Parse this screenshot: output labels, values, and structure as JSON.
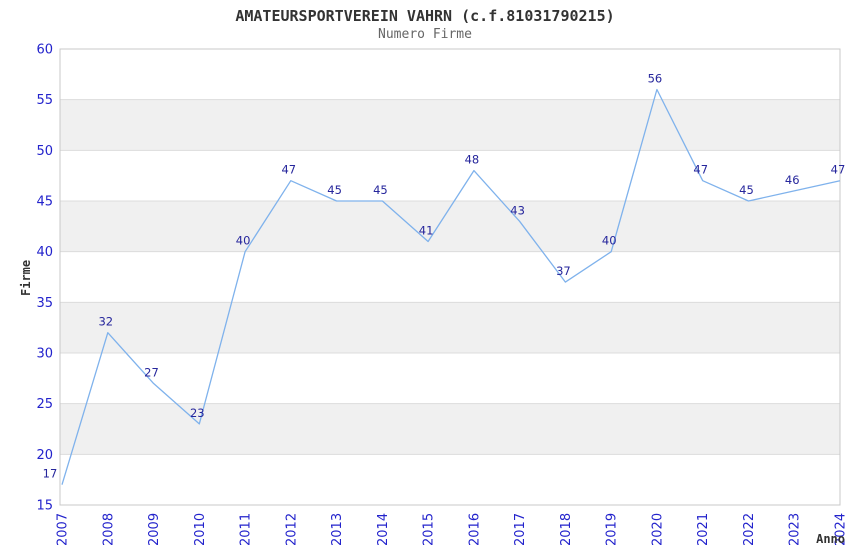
{
  "header": {
    "title": "AMATEURSPORTVEREIN VAHRN (c.f.81031790215)",
    "subtitle": "Numero Firme"
  },
  "chart_data": {
    "type": "line",
    "title": "AMATEURSPORTVEREIN VAHRN (c.f.81031790215)",
    "subtitle": "Numero Firme",
    "xlabel": "Anno",
    "ylabel": "Firme",
    "x": [
      2007,
      2008,
      2009,
      2010,
      2011,
      2012,
      2013,
      2014,
      2015,
      2016,
      2017,
      2018,
      2019,
      2020,
      2021,
      2022,
      2023,
      2024
    ],
    "values": [
      17,
      32,
      27,
      23,
      40,
      47,
      45,
      45,
      41,
      48,
      43,
      37,
      40,
      56,
      47,
      45,
      46,
      47
    ],
    "series_name": "Numero Firme",
    "ylim": [
      15,
      60
    ],
    "yticks": [
      15,
      20,
      25,
      30,
      35,
      40,
      45,
      50,
      55,
      60
    ],
    "ytick_step": 5,
    "grid": "horizontal",
    "banded_rows": true,
    "point_labels_visible": true,
    "legend": "none",
    "colors": {
      "line": "#7fb2ec",
      "point_label": "#26269c",
      "tick_label": "#2323cc",
      "axis_title": "#333333",
      "band": "#f0f0f0",
      "gridline": "#dcdcdc",
      "plot_border": "#c8c8c8",
      "title": "#333333",
      "subtitle": "#666666",
      "background": "#ffffff"
    }
  }
}
